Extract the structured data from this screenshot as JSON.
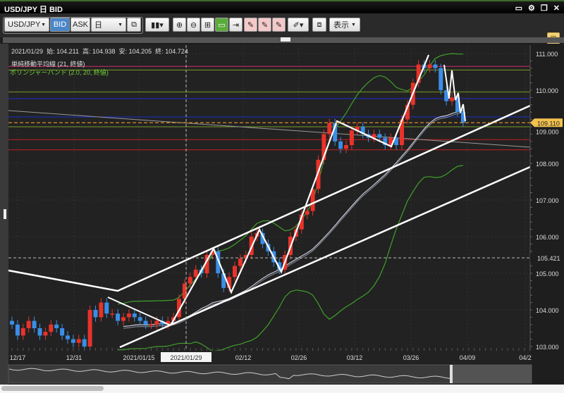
{
  "window": {
    "title": "USD/JPY 日 BID",
    "icons": [
      "maximize-icon",
      "gear-icon",
      "restore-icon",
      "close-icon"
    ]
  },
  "toolbar": {
    "pair": "USD/JPY",
    "bid": "BID",
    "ask": "ASK",
    "period": "日",
    "display": "表示",
    "active_bid": true
  },
  "info": {
    "date": "2021/01/29",
    "open_label": "始:",
    "open": "104.211",
    "high_label": "高:",
    "high": "104.938",
    "low_label": "安:",
    "low": "104.205",
    "close_label": "終:",
    "close": "104.724"
  },
  "indicators": {
    "sma": "単純移動平均線 (21, 終値)",
    "bb": "ボリンジャーバンド (2.0, 20, 終値)"
  },
  "colors": {
    "up": "#e8332a",
    "down": "#3a8ee6",
    "bb": "#3fa02a",
    "sma": "#c8ccd6",
    "price_tag": "#f2c14e"
  },
  "chart_data": {
    "type": "candlestick",
    "ylim": [
      102.9,
      111.25
    ],
    "y_ticks": [
      "111.000",
      "110.000",
      "109.000",
      "108.000",
      "107.000",
      "106.000",
      "105.000",
      "104.000",
      "103.000"
    ],
    "x_ticks": [
      "12/17",
      "12/31",
      "2021/01/15",
      "2021/01/29",
      "02/12",
      "02/26",
      "03/12",
      "03/26",
      "04/09",
      "04/2"
    ],
    "selected_x": "2021/01/29",
    "current_price": "109.110",
    "crosshair_price": "105.421",
    "closes": [
      103.6,
      103.3,
      103.5,
      103.7,
      103.5,
      103.3,
      103.4,
      103.6,
      103.5,
      103.3,
      103.2,
      103.1,
      103.2,
      103.0,
      104.0,
      103.8,
      104.2,
      103.9,
      103.9,
      103.7,
      103.8,
      103.9,
      103.8,
      103.7,
      103.6,
      103.6,
      103.7,
      103.6,
      103.7,
      103.8,
      104.3,
      104.72,
      104.9,
      105.1,
      105.0,
      105.5,
      105.6,
      105.0,
      104.6,
      104.9,
      105.2,
      105.4,
      105.5,
      106.0,
      106.1,
      105.8,
      105.6,
      105.3,
      105.1,
      105.5,
      106.0,
      106.2,
      106.6,
      106.7,
      107.3,
      108.1,
      108.8,
      109.1,
      108.6,
      108.4,
      108.5,
      108.9,
      109.0,
      108.8,
      108.7,
      108.8,
      108.7,
      108.5,
      108.7,
      108.5,
      109.2,
      109.6,
      110.2,
      110.7,
      110.6,
      110.7,
      110.6,
      110.0,
      109.7,
      109.8,
      109.4,
      109.11
    ],
    "sma_period": 21,
    "bb": {
      "period": 20,
      "sigma": 2.0
    },
    "horizontal_lines": [
      {
        "price": 110.65,
        "color": "#d02a6a"
      },
      {
        "price": 110.55,
        "color": "#7a9a2a"
      },
      {
        "price": 109.95,
        "color": "#7a9a2a"
      },
      {
        "price": 109.77,
        "color": "#1a2fd0"
      },
      {
        "price": 109.27,
        "color": "#1a2fd0"
      },
      {
        "price": 109.0,
        "color": "#7a9a2a"
      },
      {
        "price": 108.65,
        "color": "#c02020"
      },
      {
        "price": 108.37,
        "color": "#c02020"
      }
    ]
  }
}
